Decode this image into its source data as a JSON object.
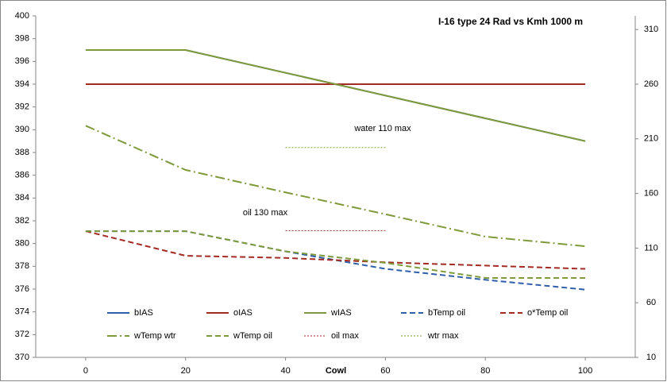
{
  "chart_data": {
    "type": "line",
    "title": "I-16 type 24  Rad vs Kmh 1000 m",
    "x_label": "Cowl",
    "x": [
      0,
      20,
      40,
      60,
      80,
      100
    ],
    "xlim": [
      -10,
      110
    ],
    "xticks": [
      0,
      20,
      40,
      60,
      80,
      100
    ],
    "ylim": [
      370,
      400
    ],
    "yticks": [
      370,
      372,
      374,
      376,
      378,
      380,
      382,
      384,
      386,
      388,
      390,
      392,
      394,
      396,
      398,
      400
    ],
    "y2lim": [
      10,
      322.5
    ],
    "y2ticks": [
      10,
      60,
      110,
      160,
      210,
      260,
      310
    ],
    "series": [
      {
        "name": "bIAS",
        "color": "#2e5fa8",
        "dash": "solid",
        "values": [
          397,
          397,
          395,
          393,
          391,
          389
        ]
      },
      {
        "name": "oIAS",
        "color": "#a52a24",
        "dash": "solid",
        "values": [
          394,
          394,
          394,
          394,
          394,
          394
        ]
      },
      {
        "name": "wIAS",
        "color": "#7f9a3a",
        "dash": "solid",
        "values": [
          397,
          397,
          395,
          393,
          391,
          389
        ]
      },
      {
        "name": "bTemp oil",
        "color": "#2e5fa8",
        "dash": "dash",
        "axis": "y2",
        "values": [
          125.5,
          125.5,
          107,
          91,
          81,
          72
        ]
      },
      {
        "name": "o*Temp oil",
        "color": "#a52a24",
        "dash": "dash",
        "axis": "y2",
        "values": [
          125.5,
          103,
          101,
          97,
          94,
          91
        ]
      },
      {
        "name": "wTemp wtr",
        "color": "#7f9a3a",
        "dash": "dashdot",
        "axis": "y2",
        "values": [
          222,
          181.5,
          161,
          141,
          120.5,
          111.7
        ]
      },
      {
        "name": "wTemp oil",
        "color": "#7f9a3a",
        "dash": "dash",
        "axis": "y2",
        "values": [
          125.5,
          125.5,
          107,
          96.5,
          82.7,
          82.7
        ]
      },
      {
        "name": "oil max",
        "color": "#a52a24",
        "dash": "dot",
        "axis": "y2",
        "x": [
          40,
          60
        ],
        "values": [
          126,
          126
        ]
      },
      {
        "name": "wtr max",
        "color": "#7f9a3a",
        "dash": "dot",
        "axis": "y2",
        "x": [
          40,
          60
        ],
        "values": [
          202,
          202
        ]
      }
    ],
    "annotations": [
      "water 110 max",
      "oil 130 max"
    ]
  }
}
